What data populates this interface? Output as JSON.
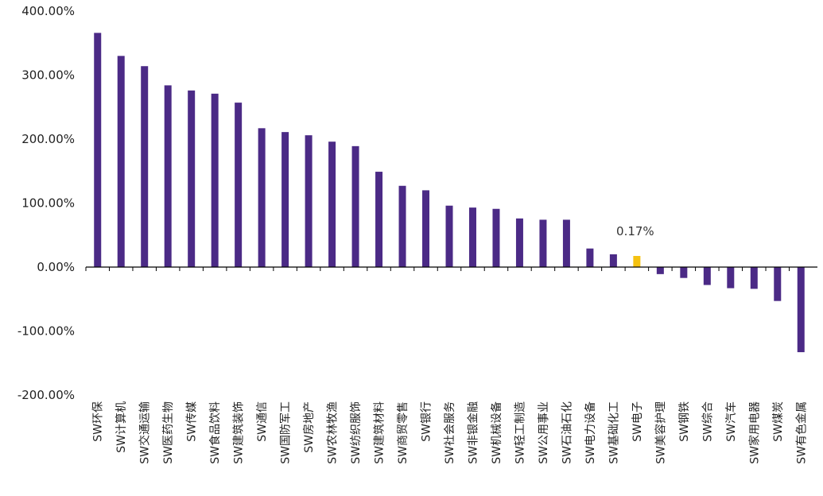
{
  "chart_data": {
    "type": "bar",
    "title": "",
    "xlabel": "",
    "ylabel": "",
    "ylim": [
      -200,
      400
    ],
    "yticks": [
      "400.00%",
      "300.00%",
      "200.00%",
      "100.00%",
      "0.00%",
      "-100.00%",
      "-200.00%"
    ],
    "grid": false,
    "categories": [
      "SW环保",
      "SW计算机",
      "SW交通运输",
      "SW医药生物",
      "SW传媒",
      "SW食品饮料",
      "SW建筑装饰",
      "SW通信",
      "SW国防军工",
      "SW房地产",
      "SW农林牧渔",
      "SW纺织服饰",
      "SW建筑材料",
      "SW商贸零售",
      "SW银行",
      "SW社会服务",
      "SW非银金融",
      "SW机械设备",
      "SW轻工制造",
      "SW公用事业",
      "SW石油石化",
      "SW电力设备",
      "SW基础化工",
      "SW电子",
      "SW美容护理",
      "SW钢铁",
      "SW综合",
      "SW汽车",
      "SW家用电器",
      "SW煤炭",
      "SW有色金属"
    ],
    "values": [
      366,
      330,
      314,
      284,
      276,
      271,
      257,
      217,
      211,
      206,
      196,
      189,
      149,
      127,
      120,
      96,
      93,
      91,
      76,
      74,
      74,
      29,
      20,
      0.17,
      -11,
      -17,
      -28,
      -33,
      -34,
      -53,
      -133
    ],
    "highlight": {
      "category": "SW电子",
      "label": "0.17%"
    },
    "colors": {
      "bar": "#4b2a86",
      "highlight": "#f5c211",
      "axis": "#000000"
    }
  }
}
